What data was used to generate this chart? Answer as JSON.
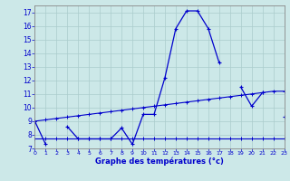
{
  "xlabel": "Graphe des températures (°c)",
  "bg_color": "#cce8e8",
  "grid_color": "#aacccc",
  "line_color": "#0000cc",
  "hours": [
    0,
    1,
    2,
    3,
    4,
    5,
    6,
    7,
    8,
    9,
    10,
    11,
    12,
    13,
    14,
    15,
    16,
    17,
    18,
    19,
    20,
    21,
    22,
    23
  ],
  "temp_main": [
    9.0,
    7.3,
    null,
    8.6,
    7.7,
    7.7,
    7.7,
    7.7,
    8.5,
    7.3,
    9.5,
    9.5,
    12.2,
    15.8,
    17.1,
    17.1,
    15.8,
    13.3,
    null,
    11.5,
    10.1,
    11.1,
    null,
    9.3
  ],
  "temp_min": [
    7.7,
    7.7,
    7.7,
    7.7,
    7.7,
    7.7,
    7.7,
    7.7,
    7.7,
    7.7,
    7.7,
    7.7,
    7.7,
    7.7,
    7.7,
    7.7,
    7.7,
    7.7,
    7.7,
    7.7,
    7.7,
    7.7,
    7.7,
    7.7
  ],
  "temp_avg": [
    9.0,
    9.1,
    9.2,
    9.3,
    9.4,
    9.5,
    9.6,
    9.7,
    9.8,
    9.9,
    10.0,
    10.1,
    10.2,
    10.3,
    10.4,
    10.5,
    10.6,
    10.7,
    10.8,
    10.9,
    11.0,
    11.1,
    11.2,
    11.2
  ],
  "ylim": [
    7,
    17.5
  ],
  "xlim": [
    0,
    23
  ],
  "yticks": [
    7,
    8,
    9,
    10,
    11,
    12,
    13,
    14,
    15,
    16,
    17
  ],
  "xticks": [
    0,
    1,
    2,
    3,
    4,
    5,
    6,
    7,
    8,
    9,
    10,
    11,
    12,
    13,
    14,
    15,
    16,
    17,
    18,
    19,
    20,
    21,
    22,
    23
  ]
}
